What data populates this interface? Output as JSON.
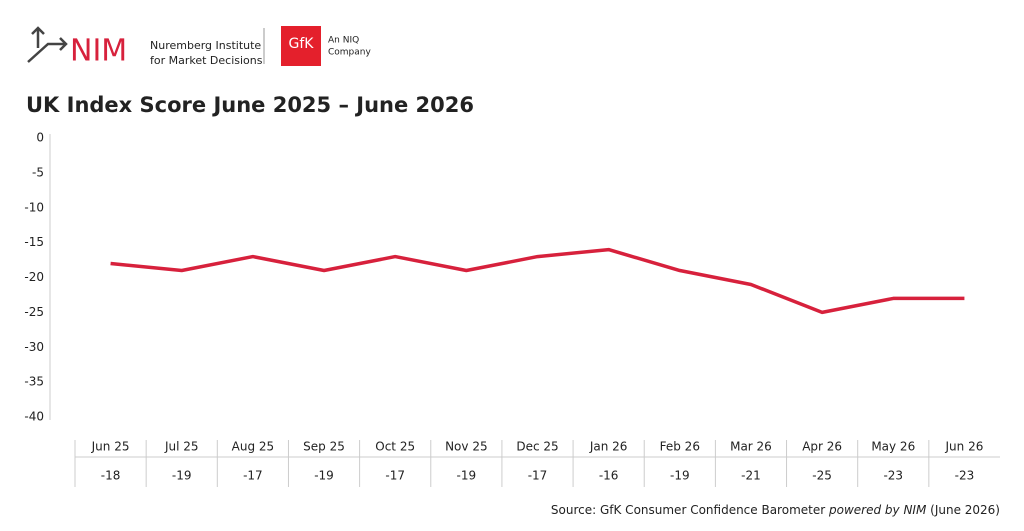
{
  "header": {
    "logo": "NIM",
    "logo_sub_1": "Nuremberg Institute",
    "logo_sub_2": "for Market Decisions",
    "partner": "GfK",
    "partner_sub_1": "An NIQ",
    "partner_sub_2": "Company"
  },
  "chart_data": {
    "type": "line",
    "title": "UK Index Score June 2025 – June 2026",
    "categories": [
      "Jun 25",
      "Jul 25",
      "Aug 25",
      "Sep 25",
      "Oct 25",
      "Nov 25",
      "Dec 25",
      "Jan 26",
      "Feb 26",
      "Mar 26",
      "Apr 26",
      "May 26",
      "Jun 26"
    ],
    "values": [
      -18,
      -19,
      -17,
      -19,
      -17,
      -19,
      -17,
      -16,
      -19,
      -21,
      -25,
      -23,
      -23
    ],
    "color": "#d7213c",
    "ylim": [
      -40,
      0
    ],
    "yticks": [
      0,
      -5,
      -10,
      -15,
      -20,
      -25,
      -30,
      -35,
      -40
    ],
    "grid": false
  },
  "source": {
    "prefix": "Source: GfK Consumer Confidence Barometer",
    "emphasis": "powered by NIM",
    "suffix": "(June 2026)"
  }
}
